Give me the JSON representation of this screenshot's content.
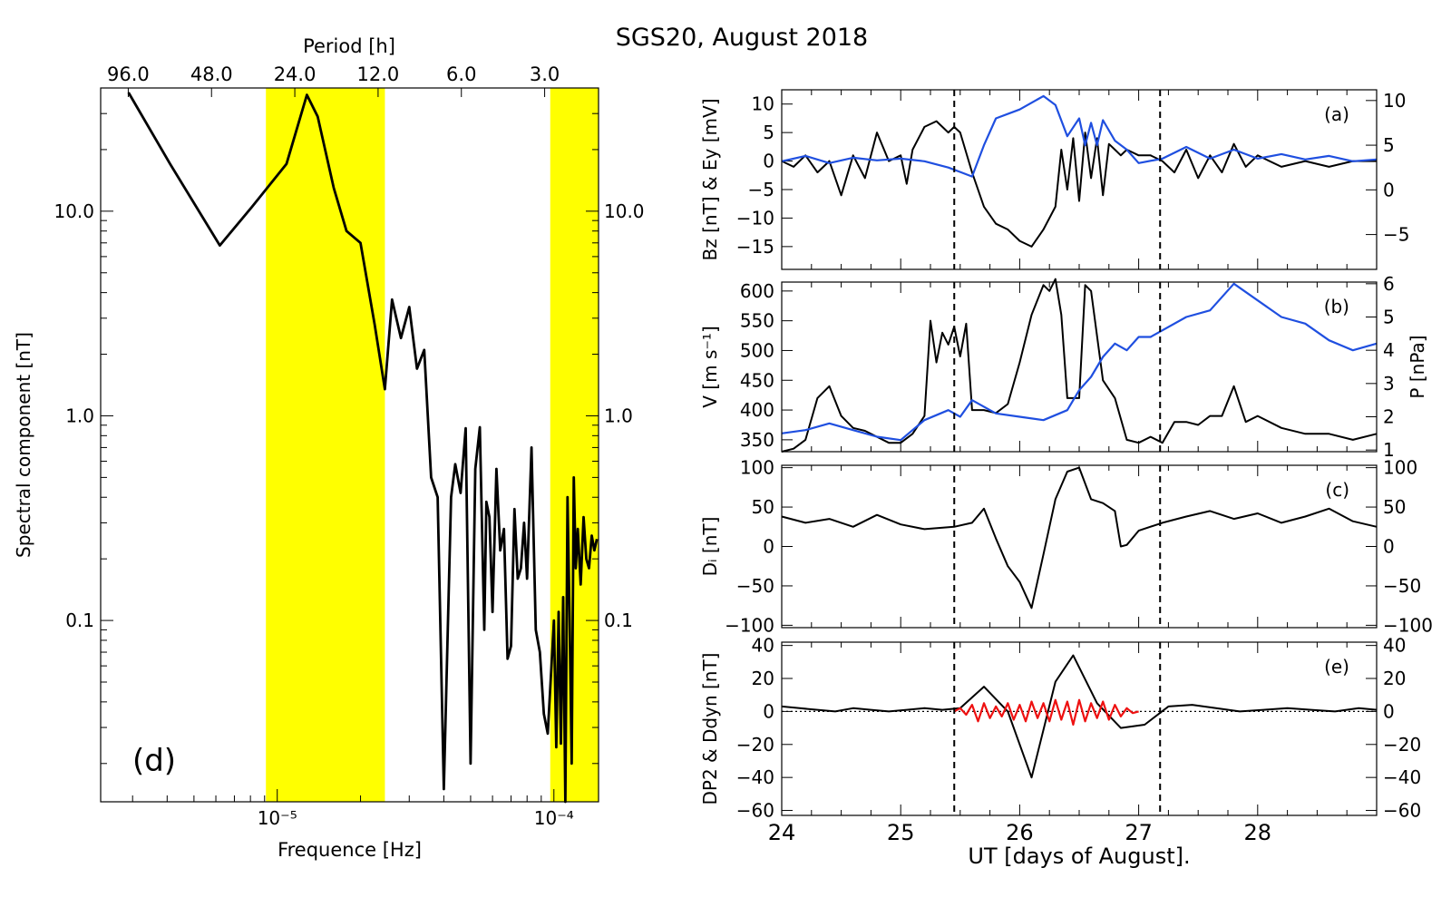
{
  "figure": {
    "title": "SGS20, August 2018"
  },
  "chart_data": [
    {
      "id": "d",
      "type": "line",
      "panel_label": "(d)",
      "title": "",
      "xlabel": "Frequence [Hz]",
      "x2label": "Period [h]",
      "ylabel": "Spectral component [nT]",
      "xscale": "log",
      "yscale": "log",
      "xlim": [
        2.3e-06,
        0.000145
      ],
      "ylim": [
        0.013,
        40
      ],
      "x_tick_labels": [
        {
          "value": 1e-05,
          "label": "10⁻⁵"
        },
        {
          "value": 0.0001,
          "label": "10⁻⁴"
        }
      ],
      "y_tick_labels": [
        "10.0",
        "1.0",
        "0.1"
      ],
      "y_tick_values": [
        10,
        1,
        0.1
      ],
      "period_tick_labels": [
        "96.0",
        "48.0",
        "24.0",
        "12.0",
        "6.0",
        "3.0"
      ],
      "period_tick_values_h": [
        96,
        48,
        24,
        12,
        6,
        3
      ],
      "shaded_bands_hz": [
        [
          9.1e-06,
          2.45e-05
        ],
        [
          9.7e-05,
          0.000145
        ]
      ],
      "shaded_color": "#ffff00",
      "series": [
        {
          "color": "#000000",
          "x": [
            2.9e-06,
            4.1e-06,
            6.2e-06,
            8.1e-06,
            1.08e-05,
            1.28e-05,
            1.4e-05,
            1.6e-05,
            1.78e-05,
            2e-05,
            2.25e-05,
            2.45e-05,
            2.6e-05,
            2.8e-05,
            3e-05,
            3.2e-05,
            3.4e-05,
            3.6e-05,
            3.8e-05,
            4e-05,
            4.25e-05,
            4.4e-05,
            4.6e-05,
            4.8e-05,
            5e-05,
            5.2e-05,
            5.4e-05,
            5.6e-05,
            5.7e-05,
            5.85e-05,
            6e-05,
            6.2e-05,
            6.4e-05,
            6.6e-05,
            6.8e-05,
            7e-05,
            7.2e-05,
            7.4e-05,
            7.6e-05,
            7.8e-05,
            8e-05,
            8.3e-05,
            8.6e-05,
            8.9e-05,
            9.2e-05,
            9.5e-05,
            9.8e-05,
            0.0001,
            0.000102,
            0.000104,
            0.000106,
            0.000108,
            0.00011,
            0.000112,
            0.000114,
            0.000116,
            0.000118,
            0.00012,
            0.000122,
            0.000125,
            0.000128,
            0.000131,
            0.000134,
            0.000137,
            0.00014,
            0.000143
          ],
          "y": [
            38,
            17,
            6.8,
            10.5,
            17,
            37,
            29,
            13,
            8,
            7,
            2.8,
            1.35,
            3.7,
            2.4,
            3.4,
            1.7,
            2.1,
            0.5,
            0.4,
            0.015,
            0.4,
            0.58,
            0.42,
            0.87,
            0.02,
            0.55,
            0.88,
            0.09,
            0.38,
            0.32,
            0.11,
            0.55,
            0.22,
            0.28,
            0.065,
            0.075,
            0.35,
            0.16,
            0.18,
            0.3,
            0.16,
            0.7,
            0.09,
            0.07,
            0.035,
            0.028,
            0.06,
            0.1,
            0.024,
            0.11,
            0.025,
            0.13,
            0.012,
            0.4,
            0.1,
            0.02,
            0.5,
            0.18,
            0.28,
            0.15,
            0.32,
            0.2,
            0.18,
            0.26,
            0.22,
            0.25
          ]
        }
      ]
    },
    {
      "id": "a",
      "type": "line",
      "panel_label": "(a)",
      "title": "",
      "ylabel": "Bz [nT] & Ey [mV]",
      "xlim": [
        24,
        29
      ],
      "ylim": [
        -19,
        12.5
      ],
      "y_tick_labels": [
        "10",
        "5",
        "0",
        "−5",
        "−10",
        "−15"
      ],
      "y_tick_values": [
        10,
        5,
        0,
        -5,
        -10,
        -15
      ],
      "y2lim": [
        -8.9,
        11.2
      ],
      "y2_tick_labels": [
        "10",
        "5",
        "0",
        "−5"
      ],
      "y2_tick_values": [
        10,
        5,
        0,
        -5
      ],
      "vlines_x": [
        25.45,
        27.18
      ],
      "series": [
        {
          "color": "#000000",
          "axis": "left",
          "x": [
            24.0,
            24.1,
            24.2,
            24.3,
            24.4,
            24.5,
            24.6,
            24.7,
            24.8,
            24.9,
            25.0,
            25.05,
            25.1,
            25.2,
            25.3,
            25.4,
            25.45,
            25.5,
            25.6,
            25.7,
            25.8,
            25.9,
            26.0,
            26.1,
            26.2,
            26.3,
            26.35,
            26.4,
            26.45,
            26.5,
            26.55,
            26.6,
            26.65,
            26.7,
            26.75,
            26.8,
            26.85,
            26.9,
            27.0,
            27.1,
            27.2,
            27.3,
            27.4,
            27.5,
            27.6,
            27.7,
            27.8,
            27.9,
            28.0,
            28.2,
            28.4,
            28.6,
            28.8,
            29.0
          ],
          "y": [
            0,
            -1,
            1,
            -2,
            0,
            -6,
            1,
            -3,
            5,
            0,
            1,
            -4,
            2,
            6,
            7,
            5,
            6,
            5,
            -2,
            -8,
            -11,
            -12,
            -14,
            -15,
            -12,
            -8,
            2,
            -5,
            4,
            -7,
            5,
            -3,
            4,
            -6,
            3,
            2,
            1,
            2,
            1,
            1,
            0,
            -2,
            2,
            -3,
            1,
            -2,
            3,
            -1,
            1,
            -1,
            0,
            -1,
            0,
            0
          ]
        },
        {
          "color": "#1f4fe0",
          "axis": "right",
          "x": [
            24.0,
            24.2,
            24.4,
            24.6,
            24.8,
            25.0,
            25.2,
            25.4,
            25.5,
            25.6,
            25.7,
            25.8,
            26.0,
            26.2,
            26.3,
            26.4,
            26.5,
            26.55,
            26.6,
            26.65,
            26.7,
            26.8,
            26.9,
            27.0,
            27.2,
            27.4,
            27.6,
            27.8,
            28.0,
            28.2,
            28.4,
            28.6,
            28.8,
            29.0
          ],
          "y": [
            3.2,
            3.8,
            3.0,
            3.6,
            3.3,
            3.5,
            3.2,
            2.5,
            2.0,
            1.5,
            5.0,
            8.0,
            9.0,
            10.5,
            9.5,
            6.0,
            8.0,
            5.0,
            7.5,
            5.0,
            7.8,
            5.5,
            4.5,
            3.0,
            3.5,
            4.8,
            3.5,
            4.5,
            3.5,
            4.0,
            3.4,
            3.8,
            3.2,
            3.4
          ]
        }
      ]
    },
    {
      "id": "b",
      "type": "line",
      "panel_label": "(b)",
      "title": "",
      "ylabel": "V [m s⁻¹]",
      "y2label": "P [nPa]",
      "xlim": [
        24,
        29
      ],
      "ylim": [
        330,
        615
      ],
      "y_tick_labels": [
        "600",
        "550",
        "500",
        "450",
        "400",
        "350"
      ],
      "y_tick_values": [
        600,
        550,
        500,
        450,
        400,
        350
      ],
      "y2lim": [
        0.95,
        6.05
      ],
      "y2_tick_labels": [
        "6",
        "5",
        "4",
        "3",
        "2",
        "1"
      ],
      "y2_tick_values": [
        6,
        5,
        4,
        3,
        2,
        1
      ],
      "vlines_x": [
        25.45,
        27.18
      ],
      "series": [
        {
          "color": "#000000",
          "axis": "left",
          "x": [
            24.0,
            24.1,
            24.2,
            24.3,
            24.4,
            24.5,
            24.6,
            24.7,
            24.8,
            24.9,
            25.0,
            25.1,
            25.2,
            25.25,
            25.3,
            25.35,
            25.4,
            25.45,
            25.5,
            25.55,
            25.6,
            25.7,
            25.8,
            25.9,
            26.0,
            26.1,
            26.2,
            26.25,
            26.3,
            26.35,
            26.4,
            26.5,
            26.55,
            26.6,
            26.7,
            26.8,
            26.9,
            27.0,
            27.1,
            27.2,
            27.3,
            27.4,
            27.5,
            27.6,
            27.7,
            27.8,
            27.9,
            28.0,
            28.2,
            28.4,
            28.6,
            28.8,
            29.0
          ],
          "y": [
            330,
            335,
            350,
            420,
            440,
            390,
            370,
            365,
            355,
            345,
            345,
            360,
            390,
            550,
            480,
            530,
            510,
            540,
            490,
            545,
            400,
            400,
            395,
            410,
            480,
            560,
            610,
            600,
            620,
            560,
            420,
            420,
            610,
            600,
            450,
            420,
            350,
            345,
            355,
            345,
            380,
            380,
            375,
            390,
            390,
            440,
            380,
            390,
            370,
            360,
            360,
            350,
            360
          ]
        },
        {
          "color": "#1f4fe0",
          "axis": "right",
          "x": [
            24.0,
            24.2,
            24.4,
            24.6,
            24.8,
            25.0,
            25.2,
            25.4,
            25.5,
            25.6,
            25.8,
            26.0,
            26.2,
            26.4,
            26.5,
            26.6,
            26.7,
            26.8,
            26.9,
            27.0,
            27.1,
            27.2,
            27.4,
            27.6,
            27.8,
            28.0,
            28.2,
            28.4,
            28.6,
            28.8,
            29.0
          ],
          "y": [
            1.5,
            1.6,
            1.8,
            1.6,
            1.4,
            1.3,
            1.9,
            2.2,
            2.0,
            2.5,
            2.1,
            2.0,
            1.9,
            2.2,
            2.8,
            3.2,
            3.8,
            4.2,
            4.0,
            4.4,
            4.4,
            4.6,
            5.0,
            5.2,
            6.0,
            5.5,
            5.0,
            4.8,
            4.3,
            4.0,
            4.2
          ]
        }
      ]
    },
    {
      "id": "c",
      "type": "line",
      "panel_label": "(c)",
      "title": "",
      "ylabel": "Dᵢ [nT]",
      "xlim": [
        24,
        29
      ],
      "ylim": [
        -103,
        103
      ],
      "y_tick_labels": [
        "100",
        "50",
        "0",
        "−50",
        "−100"
      ],
      "y_tick_values": [
        100,
        50,
        0,
        -50,
        -100
      ],
      "vlines_x": [
        25.45,
        27.18
      ],
      "series": [
        {
          "color": "#000000",
          "axis": "left",
          "x": [
            24.0,
            24.2,
            24.4,
            24.6,
            24.8,
            25.0,
            25.2,
            25.45,
            25.6,
            25.7,
            25.8,
            25.9,
            26.0,
            26.1,
            26.2,
            26.3,
            26.4,
            26.5,
            26.6,
            26.7,
            26.8,
            26.85,
            26.9,
            27.0,
            27.2,
            27.4,
            27.6,
            27.8,
            28.0,
            28.2,
            28.4,
            28.6,
            28.8,
            29.0
          ],
          "y": [
            38,
            30,
            35,
            25,
            40,
            28,
            22,
            25,
            30,
            48,
            10,
            -25,
            -45,
            -78,
            -10,
            60,
            95,
            100,
            60,
            55,
            45,
            0,
            2,
            20,
            30,
            38,
            45,
            35,
            42,
            30,
            38,
            48,
            32,
            25
          ]
        }
      ]
    },
    {
      "id": "e",
      "type": "line",
      "panel_label": "(e)",
      "title": "",
      "ylabel": "DP2 & Ddyn [nT]",
      "xlabel": "UT [days of August].",
      "xlim": [
        24,
        29
      ],
      "ylim": [
        -63,
        42
      ],
      "y_tick_labels": [
        "40",
        "20",
        "0",
        "−20",
        "−40",
        "−60"
      ],
      "y_tick_values": [
        40,
        20,
        0,
        -20,
        -40,
        -60
      ],
      "x_tick_labels": [
        "24",
        "25",
        "26",
        "27",
        "28"
      ],
      "x_tick_values": [
        24,
        25,
        26,
        27,
        28
      ],
      "vlines_x": [
        25.45,
        27.18
      ],
      "series": [
        {
          "color": "#000000",
          "axis": "left",
          "x": [
            24.0,
            24.15,
            24.3,
            24.45,
            24.6,
            24.75,
            24.9,
            25.05,
            25.2,
            25.35,
            25.5,
            25.7,
            25.9,
            26.1,
            26.3,
            26.45,
            26.65,
            26.85,
            27.05,
            27.25,
            27.45,
            27.65,
            27.85,
            28.05,
            28.25,
            28.45,
            28.65,
            28.85,
            29.0
          ],
          "y": [
            3,
            2,
            1,
            0,
            2,
            1,
            0,
            1,
            2,
            1,
            2,
            15,
            0,
            -40,
            18,
            34,
            5,
            -10,
            -8,
            3,
            4,
            2,
            0,
            1,
            2,
            1,
            0,
            2,
            1
          ]
        },
        {
          "color": "#ee1111",
          "axis": "left",
          "x": [
            25.45,
            25.5,
            25.55,
            25.6,
            25.65,
            25.7,
            25.75,
            25.8,
            25.85,
            25.9,
            25.95,
            26.0,
            26.05,
            26.1,
            26.15,
            26.2,
            26.25,
            26.3,
            26.35,
            26.4,
            26.45,
            26.5,
            26.55,
            26.6,
            26.65,
            26.7,
            26.75,
            26.8,
            26.85,
            26.9,
            26.95,
            27.0
          ],
          "y": [
            0,
            2,
            -2,
            4,
            -6,
            5,
            -4,
            3,
            -3,
            5,
            -5,
            4,
            -6,
            6,
            -4,
            5,
            -6,
            7,
            -5,
            6,
            -8,
            7,
            -6,
            5,
            -4,
            6,
            -5,
            4,
            -3,
            2,
            -1,
            0
          ]
        }
      ]
    }
  ]
}
